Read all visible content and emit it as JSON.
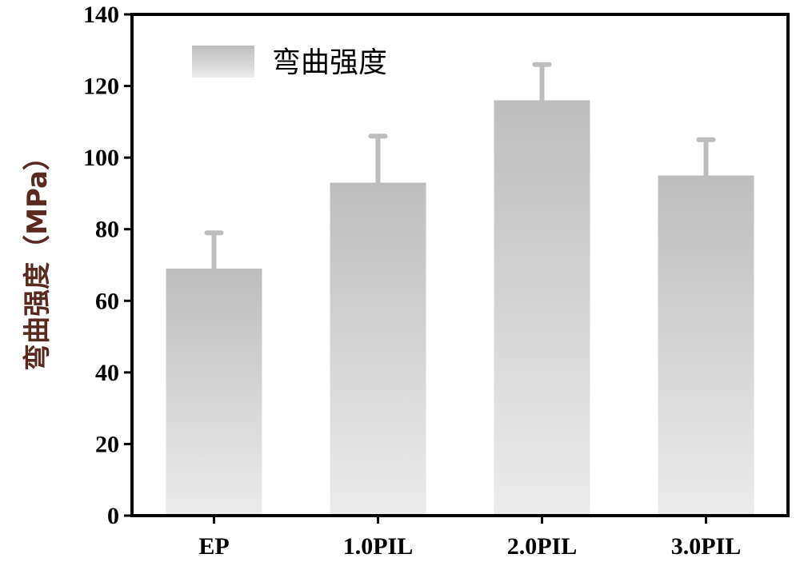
{
  "chart_data": {
    "type": "bar",
    "categories": [
      "EP",
      "1.0PIL",
      "2.0PIL",
      "3.0PIL"
    ],
    "series": [
      {
        "name": "弯曲强度",
        "values": [
          69,
          93,
          116,
          95
        ],
        "errors": [
          10,
          13,
          10,
          10
        ]
      }
    ],
    "ylabel": "弯曲强度（MPa）",
    "xlabel": "",
    "ylim": [
      0,
      140
    ],
    "yticks": [
      0,
      20,
      40,
      60,
      80,
      100,
      120,
      140
    ],
    "legend_position": "top-left",
    "grid": false,
    "colors": {
      "bar_top": "#bdbdbd",
      "bar_bottom": "#ececec",
      "axis": "#000000",
      "ylabel": "#5a2a1e"
    }
  }
}
